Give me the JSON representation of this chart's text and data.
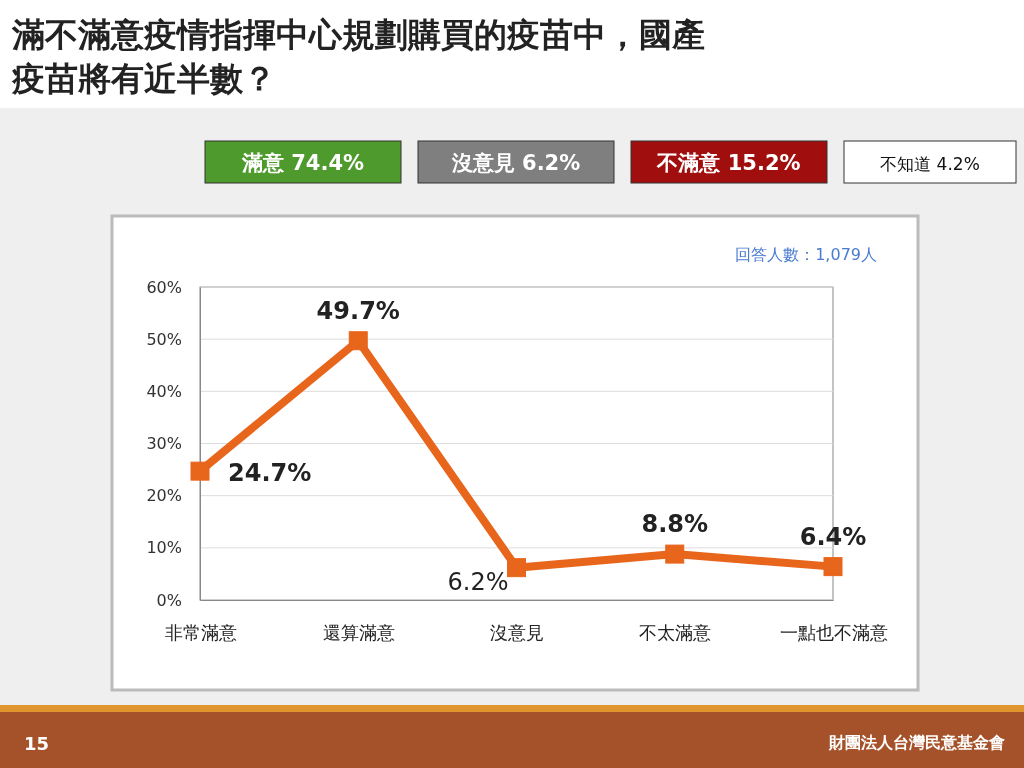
{
  "chart_data": {
    "type": "line",
    "title": "滿不滿意疫情指揮中心規劃購買的疫苗中，國產疫苗將有近半數？",
    "categories": [
      "非常滿意",
      "還算滿意",
      "沒意見",
      "不太滿意",
      "一點也不滿意"
    ],
    "series": [
      {
        "color": "#e8651c",
        "values": [
          24.7,
          49.7,
          6.2,
          8.8,
          6.4
        ],
        "value_labels": [
          "24.7%",
          "49.7%",
          "6.2%",
          "8.8%",
          "6.4%"
        ]
      }
    ],
    "ylim": [
      0,
      60
    ],
    "yticks": [
      {
        "value": 0,
        "label": "0%"
      },
      {
        "value": 10,
        "label": "10%"
      },
      {
        "value": 20,
        "label": "20%"
      },
      {
        "value": 30,
        "label": "30%"
      },
      {
        "value": 40,
        "label": "40%"
      },
      {
        "value": 50,
        "label": "50%"
      },
      {
        "value": 60,
        "label": "60%"
      }
    ],
    "grid": "y",
    "marker": "square",
    "line_style": "solid",
    "annotations": [
      "滿意 74.4%",
      "沒意見 6.2%",
      "不滿意 15.2%",
      "不知道 4.2%",
      "回答人數：1,079人",
      "15",
      "財團法人台灣民意基金會"
    ]
  }
}
